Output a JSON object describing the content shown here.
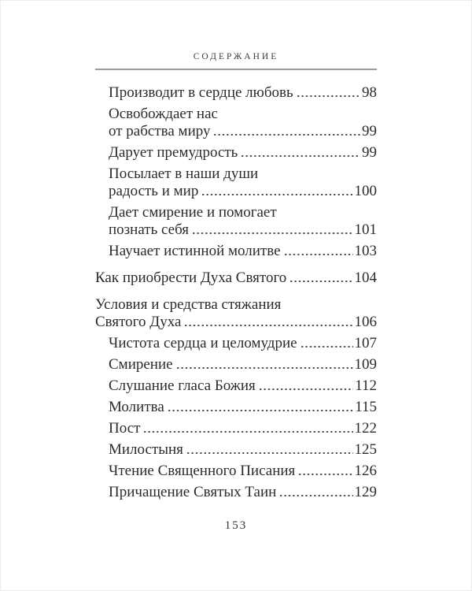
{
  "page": {
    "title": "СОДЕРЖАНИЕ",
    "folio": "153"
  },
  "colors": {
    "text": "#2b2b2b",
    "rule": "#9a9a9a",
    "dots": "#474747",
    "background": "#ffffff"
  },
  "toc": {
    "entries": [
      {
        "level": 2,
        "section_break": false,
        "lines": [
          "Производит в сердце любовь"
        ],
        "page": "98"
      },
      {
        "level": 2,
        "section_break": false,
        "lines": [
          "Освобождает нас",
          "от рабства миру"
        ],
        "page": "99"
      },
      {
        "level": 2,
        "section_break": false,
        "lines": [
          "Дарует премудрость"
        ],
        "page": "99"
      },
      {
        "level": 2,
        "section_break": false,
        "lines": [
          "Посылает в наши души",
          "радость и мир"
        ],
        "page": "100"
      },
      {
        "level": 2,
        "section_break": false,
        "lines": [
          "Дает смирение и помогает",
          "познать себя"
        ],
        "page": "101"
      },
      {
        "level": 2,
        "section_break": false,
        "lines": [
          "Научает истинной молитве"
        ],
        "page": "103"
      },
      {
        "level": 1,
        "section_break": true,
        "lines": [
          "Как приобрести Духа Святого"
        ],
        "page": "104"
      },
      {
        "level": 1,
        "section_break": true,
        "lines": [
          "Условия и средства стяжания",
          "Святого Духа"
        ],
        "page": "106"
      },
      {
        "level": 2,
        "section_break": false,
        "lines": [
          "Чистота сердца и целомудрие"
        ],
        "page": "107"
      },
      {
        "level": 2,
        "section_break": false,
        "lines": [
          "Смирение"
        ],
        "page": "109"
      },
      {
        "level": 2,
        "section_break": false,
        "lines": [
          "Слушание гласа Божия"
        ],
        "page": "112"
      },
      {
        "level": 2,
        "section_break": false,
        "lines": [
          "Молитва"
        ],
        "page": "115"
      },
      {
        "level": 2,
        "section_break": false,
        "lines": [
          "Пост"
        ],
        "page": "122"
      },
      {
        "level": 2,
        "section_break": false,
        "lines": [
          "Милостыня"
        ],
        "page": "125"
      },
      {
        "level": 2,
        "section_break": false,
        "lines": [
          "Чтение Священного Писания"
        ],
        "page": "126"
      },
      {
        "level": 2,
        "section_break": false,
        "lines": [
          "Причащение Святых Таин"
        ],
        "page": "129"
      }
    ]
  }
}
